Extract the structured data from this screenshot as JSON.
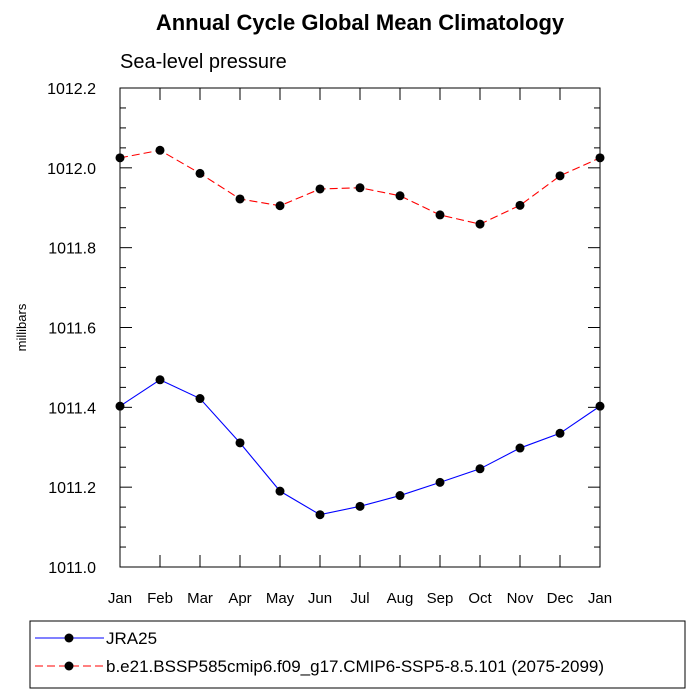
{
  "chart_data": {
    "type": "line",
    "title": "Annual Cycle Global Mean Climatology",
    "subtitle": "Sea-level pressure",
    "xlabel": "",
    "ylabel": "millibars",
    "categories": [
      "Jan",
      "Feb",
      "Mar",
      "Apr",
      "May",
      "Jun",
      "Jul",
      "Aug",
      "Sep",
      "Oct",
      "Nov",
      "Dec",
      "Jan"
    ],
    "ylim": [
      1011.0,
      1012.2
    ],
    "yticks": [
      "1011.0",
      "1011.2",
      "1011.4",
      "1011.6",
      "1011.8",
      "1012.0",
      "1012.2"
    ],
    "series": [
      {
        "name": "JRA25",
        "color": "#0000ff",
        "line_style": "solid",
        "marker": "filled-circle",
        "values": [
          1011.403,
          1011.469,
          1011.422,
          1011.311,
          1011.19,
          1011.131,
          1011.152,
          1011.179,
          1011.212,
          1011.246,
          1011.298,
          1011.335,
          1011.403
        ]
      },
      {
        "name": "b.e21.BSSP585cmip6.f09_g17.CMIP6-SSP5-8.5.101 (2075-2099)",
        "color": "#ff0000",
        "line_style": "dashed",
        "marker": "filled-circle",
        "values": [
          1012.025,
          1012.044,
          1011.986,
          1011.922,
          1011.905,
          1011.947,
          1011.95,
          1011.93,
          1011.882,
          1011.859,
          1011.906,
          1011.98,
          1012.025
        ]
      }
    ],
    "legend_position": "bottom",
    "grid": false
  }
}
